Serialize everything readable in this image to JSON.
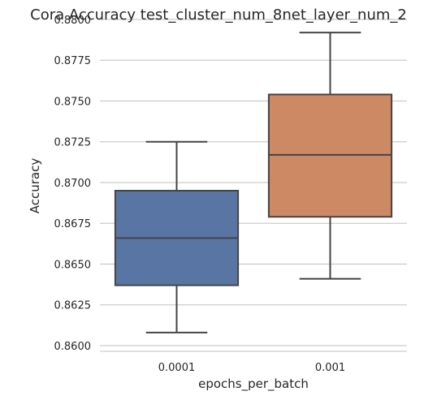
{
  "chart_data": {
    "type": "box",
    "title": "Cora Accuracy test_cluster_num_8net_layer_num_2",
    "xlabel": "epochs_per_batch",
    "ylabel": "Accuracy",
    "ylim": [
      0.8598,
      0.88
    ],
    "yticks": [
      "0.8600",
      "0.8625",
      "0.8650",
      "0.8675",
      "0.8700",
      "0.8725",
      "0.8750",
      "0.8775",
      "0.8800"
    ],
    "grid": "horizontal",
    "categories": [
      "0.0001",
      "0.001"
    ],
    "boxes": [
      {
        "category": "0.0001",
        "whisker_low": 0.8608,
        "q1": 0.8637,
        "median": 0.8666,
        "q3": 0.8695,
        "whisker_high": 0.8725,
        "color": "#5875a4"
      },
      {
        "category": "0.001",
        "whisker_low": 0.8641,
        "q1": 0.8679,
        "median": 0.8717,
        "q3": 0.8754,
        "whisker_high": 0.8792,
        "color": "#cc8963"
      }
    ]
  }
}
